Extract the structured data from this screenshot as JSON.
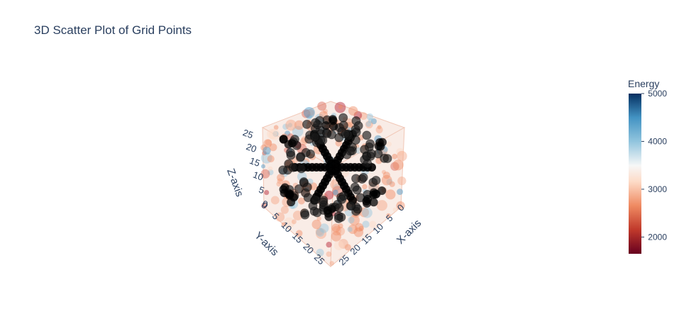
{
  "chart_data": {
    "type": "scatter3d",
    "title": "3D Scatter Plot of Grid Points",
    "axes": {
      "x": {
        "label": "X-axis",
        "ticks": [
          "0",
          "5",
          "10",
          "15",
          "20",
          "25"
        ],
        "range": [
          0,
          27
        ]
      },
      "y": {
        "label": "Y-axis",
        "ticks": [
          "0",
          "5",
          "10",
          "15",
          "20",
          "25"
        ],
        "range": [
          0,
          27
        ]
      },
      "z": {
        "label": "Z-axis",
        "ticks": [
          "0",
          "5",
          "10",
          "15",
          "20",
          "25"
        ],
        "range": [
          0,
          27
        ]
      }
    },
    "colorbar": {
      "title": "Energy",
      "ticks": [
        "2000",
        "3000",
        "4000",
        "5000"
      ],
      "range": [
        1650,
        5000
      ],
      "colorscale": "RdBu"
    },
    "marker_color": "#000000"
  }
}
